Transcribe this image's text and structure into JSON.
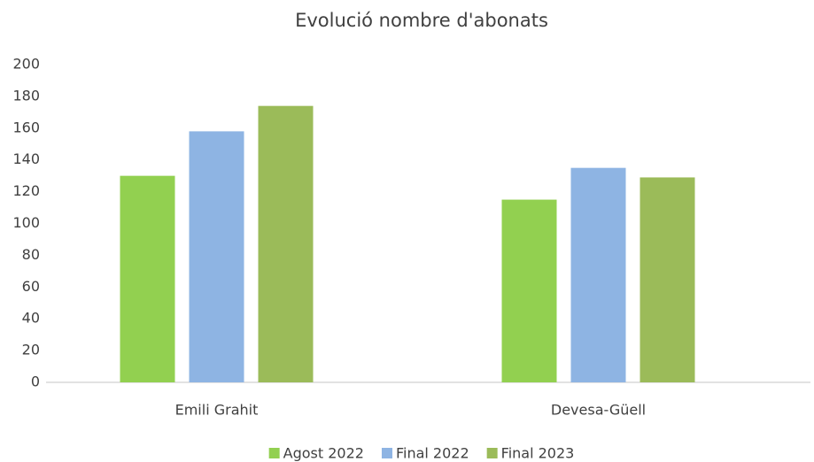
{
  "chart_data": {
    "type": "bar",
    "title": "Evolució nombre d'abonats",
    "categories": [
      "Emili Grahit",
      "Devesa-Güell"
    ],
    "series": [
      {
        "name": "Agost 2022",
        "color": "#92d050",
        "values": [
          130,
          115
        ]
      },
      {
        "name": "Final 2022",
        "color": "#8eb4e3",
        "values": [
          158,
          135
        ]
      },
      {
        "name": "Final 2023",
        "color": "#9bbb59",
        "values": [
          174,
          129
        ]
      }
    ],
    "ylim": [
      0,
      200
    ],
    "yticks": [
      0,
      20,
      40,
      60,
      80,
      100,
      120,
      140,
      160,
      180,
      200
    ],
    "grid": false,
    "legend": "bottom"
  }
}
